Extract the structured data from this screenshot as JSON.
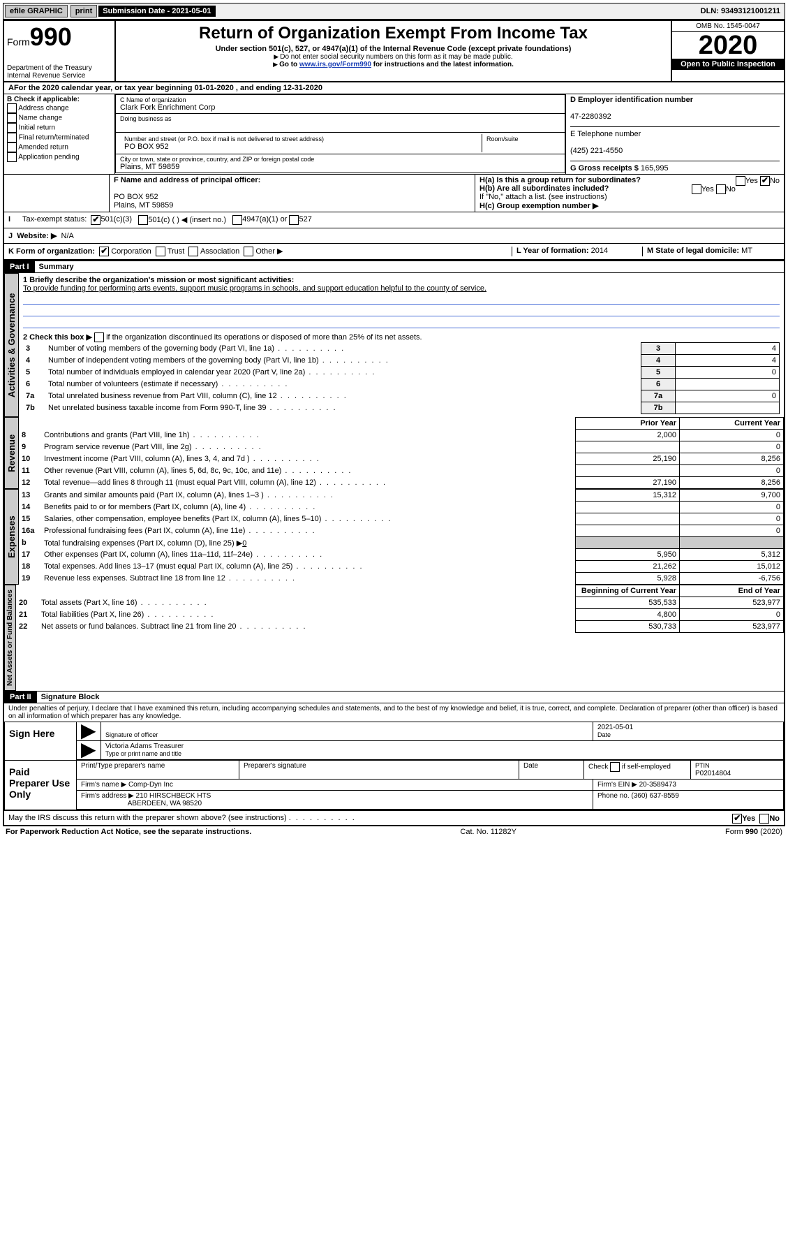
{
  "topbar": {
    "efile": "efile GRAPHIC",
    "print": "print",
    "submission": "Submission Date - 2021-05-01",
    "dln": "DLN: 93493121001211"
  },
  "header": {
    "form_prefix": "Form",
    "form_number": "990",
    "dept": "Department of the Treasury\nInternal Revenue Service",
    "title": "Return of Organization Exempt From Income Tax",
    "sub": "Under section 501(c), 527, or 4947(a)(1) of the Internal Revenue Code (except private foundations)",
    "note1": "Do not enter social security numbers on this form as it may be made public.",
    "note2_pre": "Go to ",
    "note2_link": "www.irs.gov/Form990",
    "note2_post": " for instructions and the latest information.",
    "omb": "OMB No. 1545-0047",
    "year": "2020",
    "open": "Open to Public Inspection"
  },
  "line_a": {
    "text_pre": "For the 2020 calendar year, or tax year beginning ",
    "begin": "01-01-2020",
    "text_mid": " , and ending ",
    "end": "12-31-2020"
  },
  "box_b": {
    "label": "B Check if applicable:",
    "opts": [
      "Address change",
      "Name change",
      "Initial return",
      "Final return/terminated",
      "Amended return",
      "Application pending"
    ]
  },
  "box_c": {
    "name_label": "C Name of organization",
    "name": "Clark Fork Enrichment Corp",
    "dba_label": "Doing business as",
    "addr_label": "Number and street (or P.O. box if mail is not delivered to street address)",
    "room_label": "Room/suite",
    "addr": "PO BOX 952",
    "city_label": "City or town, state or province, country, and ZIP or foreign postal code",
    "city": "Plains, MT  59859"
  },
  "box_d": {
    "ein_label": "D Employer identification number",
    "ein": "47-2280392",
    "tel_label": "E Telephone number",
    "tel": "(425) 221-4550",
    "gross_label": "G Gross receipts $",
    "gross": "165,995"
  },
  "box_f": {
    "label": "F  Name and address of principal officer:",
    "addr1": "PO BOX 952",
    "addr2": "Plains, MT  59859"
  },
  "box_h": {
    "a_label": "H(a)  Is this a group return for subordinates?",
    "b_label": "H(b)  Are all subordinates included?",
    "note": "If \"No,\" attach a list. (see instructions)",
    "c_label": "H(c)  Group exemption number ▶"
  },
  "box_i": {
    "label": "Tax-exempt status:",
    "opt1": "501(c)(3)",
    "opt2": "501(c) (  ) ◀ (insert no.)",
    "opt3": "4947(a)(1) or",
    "opt4": "527"
  },
  "box_j": {
    "label": "Website: ▶",
    "val": "N/A"
  },
  "box_k": {
    "label": "K Form of organization:",
    "opts": [
      "Corporation",
      "Trust",
      "Association",
      "Other ▶"
    ],
    "l_label": "L Year of formation:",
    "l_val": "2014",
    "m_label": "M State of legal domicile:",
    "m_val": "MT"
  },
  "parts": {
    "p1": "Part I",
    "p1_title": "Summary",
    "p2": "Part II",
    "p2_title": "Signature Block"
  },
  "summary": {
    "q1_label": "1  Briefly describe the organization's mission or most significant activities:",
    "q1_val": "To provide funding for performing arts events, support music programs in schools, and support education helpful to the county of service.",
    "q2": "2   Check this box ▶",
    "q2_post": " if the organization discontinued its operations or disposed of more than 25% of its net assets.",
    "lines": [
      {
        "n": "3",
        "t": "Number of voting members of the governing body (Part VI, line 1a)",
        "v": "4"
      },
      {
        "n": "4",
        "t": "Number of independent voting members of the governing body (Part VI, line 1b)",
        "v": "4"
      },
      {
        "n": "5",
        "t": "Total number of individuals employed in calendar year 2020 (Part V, line 2a)",
        "v": "0"
      },
      {
        "n": "6",
        "t": "Total number of volunteers (estimate if necessary)",
        "v": ""
      },
      {
        "n": "7a",
        "t": "Total unrelated business revenue from Part VIII, column (C), line 12",
        "v": "0"
      },
      {
        "n": "7b",
        "t": "Net unrelated business taxable income from Form 990-T, line 39",
        "v": ""
      }
    ],
    "prior_hdr": "Prior Year",
    "current_hdr": "Current Year",
    "rev": [
      {
        "n": "8",
        "t": "Contributions and grants (Part VIII, line 1h)",
        "p": "2,000",
        "c": "0"
      },
      {
        "n": "9",
        "t": "Program service revenue (Part VIII, line 2g)",
        "p": "",
        "c": "0"
      },
      {
        "n": "10",
        "t": "Investment income (Part VIII, column (A), lines 3, 4, and 7d )",
        "p": "25,190",
        "c": "8,256"
      },
      {
        "n": "11",
        "t": "Other revenue (Part VIII, column (A), lines 5, 6d, 8c, 9c, 10c, and 11e)",
        "p": "",
        "c": "0"
      },
      {
        "n": "12",
        "t": "Total revenue—add lines 8 through 11 (must equal Part VIII, column (A), line 12)",
        "p": "27,190",
        "c": "8,256"
      }
    ],
    "exp": [
      {
        "n": "13",
        "t": "Grants and similar amounts paid (Part IX, column (A), lines 1–3 )",
        "p": "15,312",
        "c": "9,700"
      },
      {
        "n": "14",
        "t": "Benefits paid to or for members (Part IX, column (A), line 4)",
        "p": "",
        "c": "0"
      },
      {
        "n": "15",
        "t": "Salaries, other compensation, employee benefits (Part IX, column (A), lines 5–10)",
        "p": "",
        "c": "0"
      },
      {
        "n": "16a",
        "t": "Professional fundraising fees (Part IX, column (A), line 11e)",
        "p": "",
        "c": "0"
      }
    ],
    "exp_b": {
      "n": "b",
      "t": "Total fundraising expenses (Part IX, column (D), line 25) ▶",
      "v": "0"
    },
    "exp2": [
      {
        "n": "17",
        "t": "Other expenses (Part IX, column (A), lines 11a–11d, 11f–24e)",
        "p": "5,950",
        "c": "5,312"
      },
      {
        "n": "18",
        "t": "Total expenses. Add lines 13–17 (must equal Part IX, column (A), line 25)",
        "p": "21,262",
        "c": "15,012"
      },
      {
        "n": "19",
        "t": "Revenue less expenses. Subtract line 18 from line 12",
        "p": "5,928",
        "c": "-6,756"
      }
    ],
    "bal_hdr_p": "Beginning of Current Year",
    "bal_hdr_c": "End of Year",
    "bal": [
      {
        "n": "20",
        "t": "Total assets (Part X, line 16)",
        "p": "535,533",
        "c": "523,977"
      },
      {
        "n": "21",
        "t": "Total liabilities (Part X, line 26)",
        "p": "4,800",
        "c": "0"
      },
      {
        "n": "22",
        "t": "Net assets or fund balances. Subtract line 21 from line 20",
        "p": "530,733",
        "c": "523,977"
      }
    ]
  },
  "side_labels": {
    "gov": "Activities & Governance",
    "rev": "Revenue",
    "exp": "Expenses",
    "bal": "Net Assets or Fund Balances"
  },
  "sig": {
    "perjury": "Under penalties of perjury, I declare that I have examined this return, including accompanying schedules and statements, and to the best of my knowledge and belief, it is true, correct, and complete. Declaration of preparer (other than officer) is based on all information of which preparer has any knowledge.",
    "sign_here": "Sign Here",
    "sig_officer": "Signature of officer",
    "date_label": "Date",
    "date_val": "2021-05-01",
    "name_val": "Victoria Adams Treasurer",
    "name_label": "Type or print name and title",
    "paid": "Paid Preparer Use Only",
    "prep_name_label": "Print/Type preparer's name",
    "prep_sig_label": "Preparer's signature",
    "prep_date_label": "Date",
    "self_emp": "Check         if self-employed",
    "ptin_label": "PTIN",
    "ptin": "P02014804",
    "firm_name_label": "Firm's name     ▶",
    "firm_name": "Comp-Dyn Inc",
    "firm_ein_label": "Firm's EIN ▶",
    "firm_ein": "20-3589473",
    "firm_addr_label": "Firm's address ▶",
    "firm_addr1": "210 HIRSCHBECK HTS",
    "firm_addr2": "ABERDEEN, WA  98520",
    "phone_label": "Phone no.",
    "phone": "(360) 637-8559",
    "discuss": "May the IRS discuss this return with the preparer shown above? (see instructions)"
  },
  "footer": {
    "pra": "For Paperwork Reduction Act Notice, see the separate instructions.",
    "cat": "Cat. No. 11282Y",
    "form": "Form 990 (2020)"
  }
}
